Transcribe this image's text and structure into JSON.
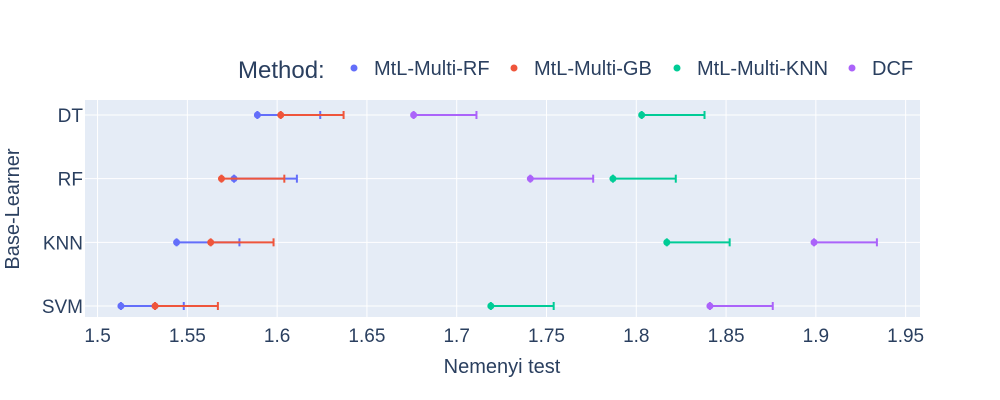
{
  "chart_data": {
    "type": "scatter",
    "orientation": "horizontal-error-bars",
    "xlabel": "Nemenyi test",
    "ylabel": "Base-Learner",
    "categories": [
      "DT",
      "RF",
      "KNN",
      "SVM"
    ],
    "xlim": [
      1.493,
      1.958
    ],
    "x_ticks": [
      1.5,
      1.55,
      1.6,
      1.65,
      1.7,
      1.75,
      1.8,
      1.85,
      1.9,
      1.95
    ],
    "x_tick_labels": [
      "1.5",
      "1.55",
      "1.6",
      "1.65",
      "1.7",
      "1.75",
      "1.8",
      "1.85",
      "1.9",
      "1.95"
    ],
    "grid": true,
    "legend": {
      "title": "Method:",
      "placement": "top",
      "orientation": "horizontal"
    },
    "series": [
      {
        "name": "MtL-Multi-RF",
        "color": "#636efa",
        "points": [
          {
            "category": "DT",
            "x": 1.589,
            "x_upper": 1.624
          },
          {
            "category": "RF",
            "x": 1.576,
            "x_upper": 1.611
          },
          {
            "category": "KNN",
            "x": 1.544,
            "x_upper": 1.579
          },
          {
            "category": "SVM",
            "x": 1.513,
            "x_upper": 1.548
          }
        ]
      },
      {
        "name": "MtL-Multi-GB",
        "color": "#ef553b",
        "points": [
          {
            "category": "DT",
            "x": 1.602,
            "x_upper": 1.637
          },
          {
            "category": "RF",
            "x": 1.569,
            "x_upper": 1.604
          },
          {
            "category": "KNN",
            "x": 1.563,
            "x_upper": 1.598
          },
          {
            "category": "SVM",
            "x": 1.532,
            "x_upper": 1.567
          }
        ]
      },
      {
        "name": "MtL-Multi-KNN",
        "color": "#00cc96",
        "points": [
          {
            "category": "DT",
            "x": 1.803,
            "x_upper": 1.838
          },
          {
            "category": "RF",
            "x": 1.787,
            "x_upper": 1.822
          },
          {
            "category": "KNN",
            "x": 1.817,
            "x_upper": 1.852
          },
          {
            "category": "SVM",
            "x": 1.719,
            "x_upper": 1.754
          }
        ]
      },
      {
        "name": "DCF",
        "color": "#ab63fa",
        "points": [
          {
            "category": "DT",
            "x": 1.676,
            "x_upper": 1.711
          },
          {
            "category": "RF",
            "x": 1.741,
            "x_upper": 1.776
          },
          {
            "category": "KNN",
            "x": 1.899,
            "x_upper": 1.934
          },
          {
            "category": "SVM",
            "x": 1.841,
            "x_upper": 1.876
          }
        ]
      }
    ]
  }
}
